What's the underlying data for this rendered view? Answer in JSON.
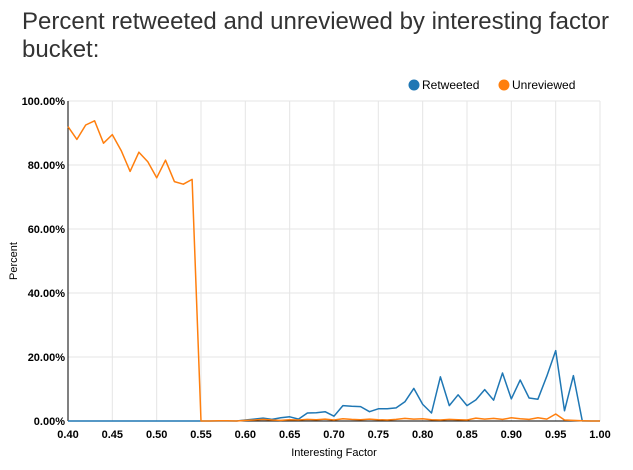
{
  "title": "Percent retweeted and unreviewed by interesting factor bucket:",
  "chart_data": {
    "type": "line",
    "title": "Percent retweeted and unreviewed by interesting factor bucket:",
    "xlabel": "Interesting Factor",
    "ylabel": "Percent",
    "xlim": [
      0.4,
      1.0
    ],
    "ylim": [
      0,
      100
    ],
    "xticks": [
      0.4,
      0.45,
      0.5,
      0.55,
      0.6,
      0.65,
      0.7,
      0.75,
      0.8,
      0.85,
      0.9,
      0.95,
      1.0
    ],
    "xtick_labels": [
      "0.40",
      "0.45",
      "0.50",
      "0.55",
      "0.60",
      "0.65",
      "0.70",
      "0.75",
      "0.80",
      "0.85",
      "0.90",
      "0.95",
      "1.00"
    ],
    "yticks": [
      0,
      20,
      40,
      60,
      80,
      100
    ],
    "ytick_labels": [
      "0.00%",
      "20.00%",
      "40.00%",
      "60.00%",
      "80.00%",
      "100.00%"
    ],
    "grid": true,
    "legend_position": "top-right",
    "series": [
      {
        "name": "Retweeted",
        "color": "#1f77b4",
        "x": [
          0.4,
          0.41,
          0.42,
          0.43,
          0.44,
          0.45,
          0.46,
          0.47,
          0.48,
          0.49,
          0.5,
          0.51,
          0.52,
          0.53,
          0.54,
          0.55,
          0.56,
          0.57,
          0.58,
          0.59,
          0.6,
          0.61,
          0.62,
          0.63,
          0.64,
          0.65,
          0.66,
          0.67,
          0.68,
          0.69,
          0.7,
          0.71,
          0.72,
          0.73,
          0.74,
          0.75,
          0.76,
          0.77,
          0.78,
          0.79,
          0.8,
          0.81,
          0.82,
          0.83,
          0.84,
          0.85,
          0.86,
          0.87,
          0.88,
          0.89,
          0.9,
          0.91,
          0.92,
          0.93,
          0.94,
          0.95,
          0.96,
          0.97,
          0.98,
          0.99,
          1.0
        ],
        "y": [
          0,
          0,
          0,
          0,
          0,
          0,
          0,
          0,
          0,
          0,
          0,
          0,
          0,
          0,
          0,
          0,
          0,
          0,
          0,
          0,
          0.3,
          0.6,
          0.9,
          0.5,
          1.0,
          1.3,
          0.6,
          2.5,
          2.6,
          2.9,
          1.5,
          4.8,
          4.6,
          4.5,
          2.9,
          3.8,
          3.8,
          4.1,
          6.0,
          10.2,
          5.2,
          2.5,
          13.8,
          4.8,
          8.2,
          4.8,
          6.6,
          9.8,
          6.5,
          15.0,
          6.9,
          12.8,
          7.2,
          6.8,
          14.0,
          22.0,
          3.2,
          14.2,
          0,
          0,
          0
        ]
      },
      {
        "name": "Unreviewed",
        "color": "#ff7f0e",
        "x": [
          0.4,
          0.41,
          0.42,
          0.43,
          0.44,
          0.45,
          0.46,
          0.47,
          0.48,
          0.49,
          0.5,
          0.51,
          0.52,
          0.53,
          0.54,
          0.55,
          0.56,
          0.57,
          0.58,
          0.59,
          0.6,
          0.61,
          0.62,
          0.63,
          0.64,
          0.65,
          0.66,
          0.67,
          0.68,
          0.69,
          0.7,
          0.71,
          0.72,
          0.73,
          0.74,
          0.75,
          0.76,
          0.77,
          0.78,
          0.79,
          0.8,
          0.81,
          0.82,
          0.83,
          0.84,
          0.85,
          0.86,
          0.87,
          0.88,
          0.89,
          0.9,
          0.91,
          0.92,
          0.93,
          0.94,
          0.95,
          0.96,
          0.97,
          0.98,
          0.99,
          1.0
        ],
        "y": [
          92.0,
          88.0,
          92.5,
          93.8,
          86.8,
          89.5,
          84.5,
          78.0,
          84.0,
          81.0,
          76.0,
          81.5,
          74.8,
          74.0,
          75.5,
          0,
          0,
          0.1,
          0.1,
          0,
          0.2,
          0.3,
          0.5,
          0.3,
          0.2,
          0.4,
          0.3,
          0.5,
          0.4,
          0.6,
          0.3,
          0.7,
          0.5,
          0.4,
          0.6,
          0.4,
          0.3,
          0.5,
          0.8,
          0.6,
          0.7,
          0.4,
          0.3,
          0.5,
          0.4,
          0.3,
          0.9,
          0.6,
          0.8,
          0.5,
          1.0,
          0.7,
          0.5,
          1.0,
          0.6,
          2.2,
          0.3,
          0.2,
          0.1,
          0,
          0
        ]
      }
    ]
  }
}
